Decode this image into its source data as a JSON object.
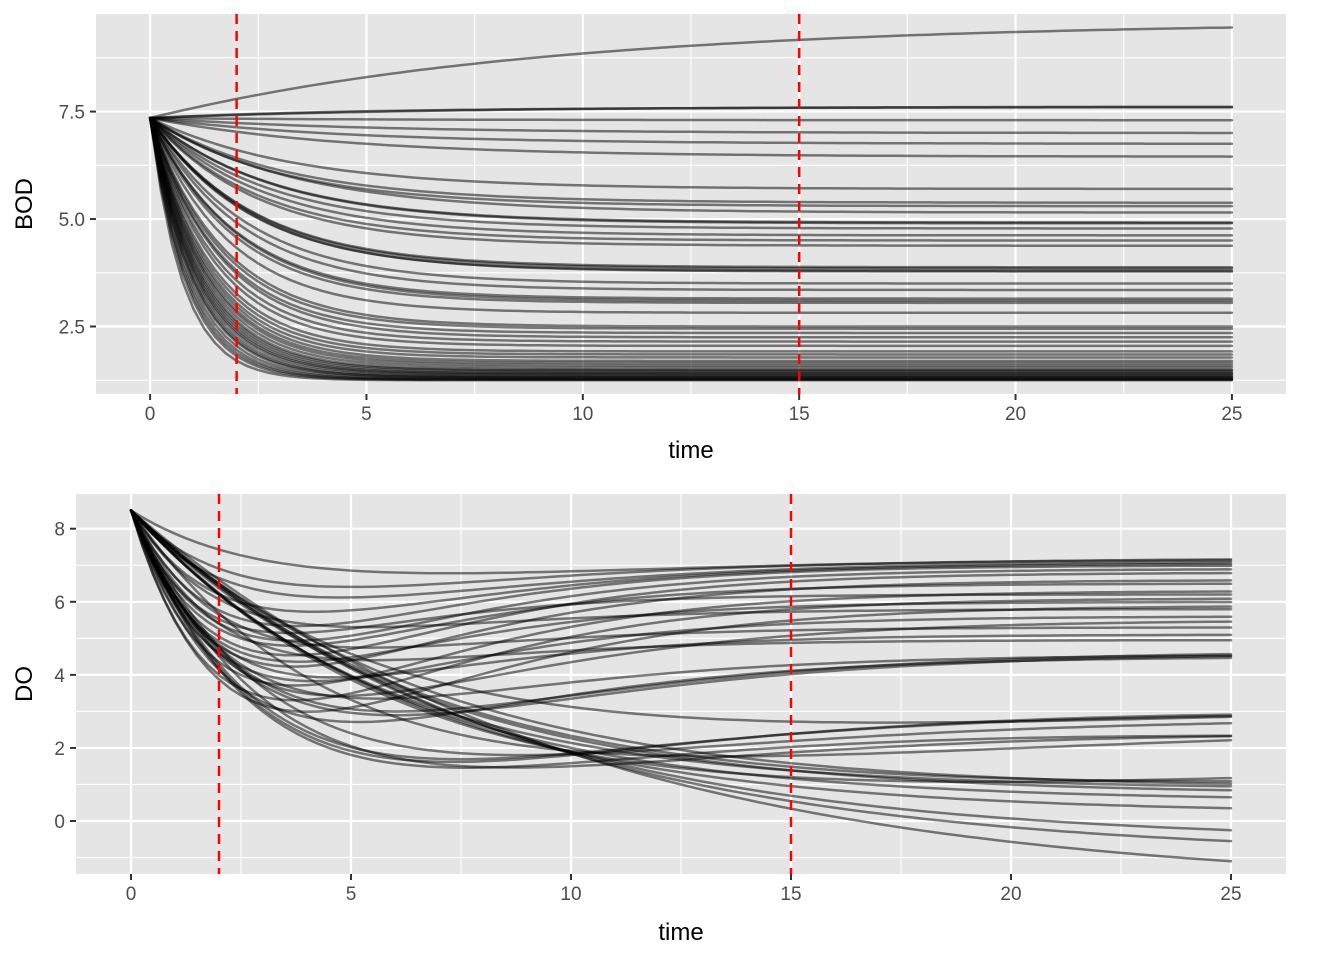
{
  "chart_data": [
    {
      "type": "line",
      "ylabel": "BOD",
      "xlabel": "time",
      "xlim": [
        -1.25,
        26.25
      ],
      "ylim": [
        0.93,
        9.77
      ],
      "x_ticks": [
        0,
        5,
        10,
        15,
        20,
        25
      ],
      "x_tick_labels": [
        "0",
        "5",
        "10",
        "15",
        "20",
        "25"
      ],
      "y_ticks": [
        2.5,
        5.0,
        7.5
      ],
      "y_tick_labels": [
        "2.5",
        "5.0",
        "7.5"
      ],
      "grid": true,
      "line_color": "#000000",
      "line_alpha": 0.5,
      "vlines": [
        2,
        15
      ],
      "vline_color": "#ff0000",
      "vline_style": "dashed",
      "series_form": "y = final + (start - final) * exp(-rate * time)",
      "start": 7.35,
      "series": [
        {
          "final": 9.6,
          "rate": 0.11
        },
        {
          "final": 7.62,
          "rate": 0.15
        },
        {
          "final": 7.6,
          "rate": 0.2
        },
        {
          "final": 7.3,
          "rate": 0.2
        },
        {
          "final": 7.0,
          "rate": 0.2
        },
        {
          "final": 6.75,
          "rate": 0.22
        },
        {
          "final": 6.45,
          "rate": 0.22
        },
        {
          "final": 5.7,
          "rate": 0.3
        },
        {
          "final": 5.38,
          "rate": 0.32
        },
        {
          "final": 5.3,
          "rate": 0.33
        },
        {
          "final": 5.15,
          "rate": 0.3
        },
        {
          "final": 4.92,
          "rate": 0.35
        },
        {
          "final": 4.9,
          "rate": 0.35
        },
        {
          "final": 4.78,
          "rate": 0.37
        },
        {
          "final": 4.62,
          "rate": 0.38
        },
        {
          "final": 4.5,
          "rate": 0.4
        },
        {
          "final": 4.38,
          "rate": 0.4
        },
        {
          "final": 3.88,
          "rate": 0.42
        },
        {
          "final": 3.85,
          "rate": 0.42
        },
        {
          "final": 3.8,
          "rate": 0.43
        },
        {
          "final": 3.78,
          "rate": 0.42
        },
        {
          "final": 3.5,
          "rate": 0.45
        },
        {
          "final": 3.35,
          "rate": 0.47
        },
        {
          "final": 3.15,
          "rate": 0.5
        },
        {
          "final": 3.1,
          "rate": 0.5
        },
        {
          "final": 3.05,
          "rate": 0.52
        },
        {
          "final": 2.82,
          "rate": 0.55
        },
        {
          "final": 2.5,
          "rate": 0.58
        },
        {
          "final": 2.45,
          "rate": 0.6
        },
        {
          "final": 2.35,
          "rate": 0.62
        },
        {
          "final": 2.25,
          "rate": 0.62
        },
        {
          "final": 2.15,
          "rate": 0.65
        },
        {
          "final": 2.05,
          "rate": 0.67
        },
        {
          "final": 1.92,
          "rate": 0.7
        },
        {
          "final": 1.85,
          "rate": 0.72
        },
        {
          "final": 1.78,
          "rate": 0.74
        },
        {
          "final": 1.7,
          "rate": 0.75
        },
        {
          "final": 1.65,
          "rate": 0.77
        },
        {
          "final": 1.6,
          "rate": 0.78
        },
        {
          "final": 1.55,
          "rate": 0.8
        },
        {
          "final": 1.5,
          "rate": 0.82
        },
        {
          "final": 1.48,
          "rate": 0.84
        },
        {
          "final": 1.45,
          "rate": 0.86
        },
        {
          "final": 1.42,
          "rate": 0.88
        },
        {
          "final": 1.4,
          "rate": 0.9
        },
        {
          "final": 1.38,
          "rate": 0.92
        },
        {
          "final": 1.35,
          "rate": 0.95
        },
        {
          "final": 1.33,
          "rate": 0.98
        },
        {
          "final": 1.32,
          "rate": 1.0
        },
        {
          "final": 1.3,
          "rate": 1.05
        },
        {
          "final": 1.28,
          "rate": 1.1
        },
        {
          "final": 1.27,
          "rate": 1.15
        },
        {
          "final": 1.26,
          "rate": 1.2
        },
        {
          "final": 1.25,
          "rate": 1.3
        }
      ]
    },
    {
      "type": "line",
      "ylabel": "DO",
      "xlabel": "time",
      "xlim": [
        -1.25,
        26.25
      ],
      "ylim": [
        -1.45,
        8.95
      ],
      "x_ticks": [
        0,
        5,
        10,
        15,
        20,
        25
      ],
      "x_tick_labels": [
        "0",
        "5",
        "10",
        "15",
        "20",
        "25"
      ],
      "y_ticks": [
        0,
        2,
        4,
        6,
        8
      ],
      "y_tick_labels": [
        "0",
        "2",
        "4",
        "6",
        "8"
      ],
      "grid": true,
      "line_color": "#000000",
      "line_alpha": 0.5,
      "vlines": [
        2,
        15
      ],
      "vline_color": "#ff0000",
      "vline_style": "dashed",
      "series_form": "y = final + (start - final) * exp(-k * time) + (sag_depth - (start - final) * (exp(-k * sag_time) - exp(-r * sag_time))) * (exp(-k * time) - exp(-r * time)) / (exp(-k * sag_time) - exp(-r * sag_time)), simplified as a two-exponential dip toward a final level",
      "start": 8.5,
      "series": [
        {
          "final": 7.2,
          "min": 6.9,
          "tmin": 4.5,
          "rate": 0.25
        },
        {
          "final": 7.15,
          "min": 6.5,
          "tmin": 3.5,
          "rate": 0.3
        },
        {
          "final": 7.1,
          "min": 6.2,
          "tmin": 3.5,
          "rate": 0.3
        },
        {
          "final": 7.05,
          "min": 5.8,
          "tmin": 3.2,
          "rate": 0.32
        },
        {
          "final": 7.0,
          "min": 5.4,
          "tmin": 3.0,
          "rate": 0.33
        },
        {
          "final": 6.9,
          "min": 5.0,
          "tmin": 3.0,
          "rate": 0.33
        },
        {
          "final": 6.8,
          "min": 4.6,
          "tmin": 3.0,
          "rate": 0.33
        },
        {
          "final": 6.6,
          "min": 4.3,
          "tmin": 3.0,
          "rate": 0.3
        },
        {
          "final": 6.5,
          "min": 4.9,
          "tmin": 2.8,
          "rate": 0.3
        },
        {
          "final": 6.3,
          "min": 3.8,
          "tmin": 3.0,
          "rate": 0.3
        },
        {
          "final": 6.2,
          "min": 5.3,
          "tmin": 2.5,
          "rate": 0.28
        },
        {
          "final": 6.1,
          "min": 3.4,
          "tmin": 3.0,
          "rate": 0.28
        },
        {
          "final": 6.0,
          "min": 4.5,
          "tmin": 2.8,
          "rate": 0.26
        },
        {
          "final": 5.9,
          "min": 3.1,
          "tmin": 3.2,
          "rate": 0.27
        },
        {
          "final": 5.8,
          "min": 5.6,
          "tmin": 3.0,
          "rate": 0.25
        },
        {
          "final": 5.6,
          "min": 4.0,
          "tmin": 3.0,
          "rate": 0.25
        },
        {
          "final": 5.5,
          "min": 3.6,
          "tmin": 3.5,
          "rate": 0.24
        },
        {
          "final": 5.3,
          "min": 5.1,
          "tmin": 3.0,
          "rate": 0.25
        },
        {
          "final": 5.1,
          "min": 4.2,
          "tmin": 3.0,
          "rate": 0.24
        },
        {
          "final": 4.95,
          "min": 4.8,
          "tmin": 3.0,
          "rate": 0.24
        },
        {
          "final": 4.65,
          "min": 3.3,
          "tmin": 4.0,
          "rate": 0.22
        },
        {
          "final": 4.6,
          "min": 3.2,
          "tmin": 4.0,
          "rate": 0.22
        },
        {
          "final": 4.55,
          "min": 3.7,
          "tmin": 3.5,
          "rate": 0.22
        },
        {
          "final": 4.5,
          "min": 3.0,
          "tmin": 3.5,
          "rate": 0.22
        },
        {
          "final": 3.4,
          "min": 3.3,
          "tmin": 9.0,
          "rate": 0.15
        },
        {
          "final": 3.0,
          "min": 2.1,
          "tmin": 4.5,
          "rate": 0.15
        },
        {
          "final": 2.95,
          "min": 2.2,
          "tmin": 4.5,
          "rate": 0.15
        },
        {
          "final": 2.8,
          "min": 2.4,
          "tmin": 5.0,
          "rate": 0.14
        },
        {
          "final": 2.65,
          "min": 2.5,
          "tmin": 7.0,
          "rate": 0.12
        },
        {
          "final": 2.35,
          "min": 2.05,
          "tmin": 5.0,
          "rate": 0.12
        },
        {
          "final": 2.25,
          "min": 2.0,
          "tmin": 4.5,
          "rate": 0.12
        },
        {
          "final": 2.0,
          "min": 1.9,
          "tmin": 10.0,
          "rate": 0.12
        },
        {
          "final": 1.65,
          "min": 1.6,
          "tmin": 14.0,
          "rate": 0.15
        },
        {
          "final": 1.35,
          "min": 1.3,
          "tmin": 18.0,
          "rate": 0.15
        },
        {
          "final": 1.05,
          "min": 1.0,
          "tmin": 20.0,
          "rate": 0.16
        },
        {
          "final": 0.95,
          "min": 0.95,
          "tmin": 25.0,
          "rate": 0.18
        },
        {
          "final": 0.65,
          "min": 0.65,
          "tmin": 25.0,
          "rate": 0.17
        },
        {
          "final": 0.35,
          "min": 0.35,
          "tmin": 25.0,
          "rate": 0.16
        },
        {
          "final": -0.25,
          "min": -0.25,
          "tmin": 25.0,
          "rate": 0.13
        },
        {
          "final": -0.55,
          "min": -0.55,
          "tmin": 25.0,
          "rate": 0.12
        },
        {
          "final": -1.1,
          "min": -1.1,
          "tmin": 25.0,
          "rate": 0.1
        }
      ]
    }
  ]
}
